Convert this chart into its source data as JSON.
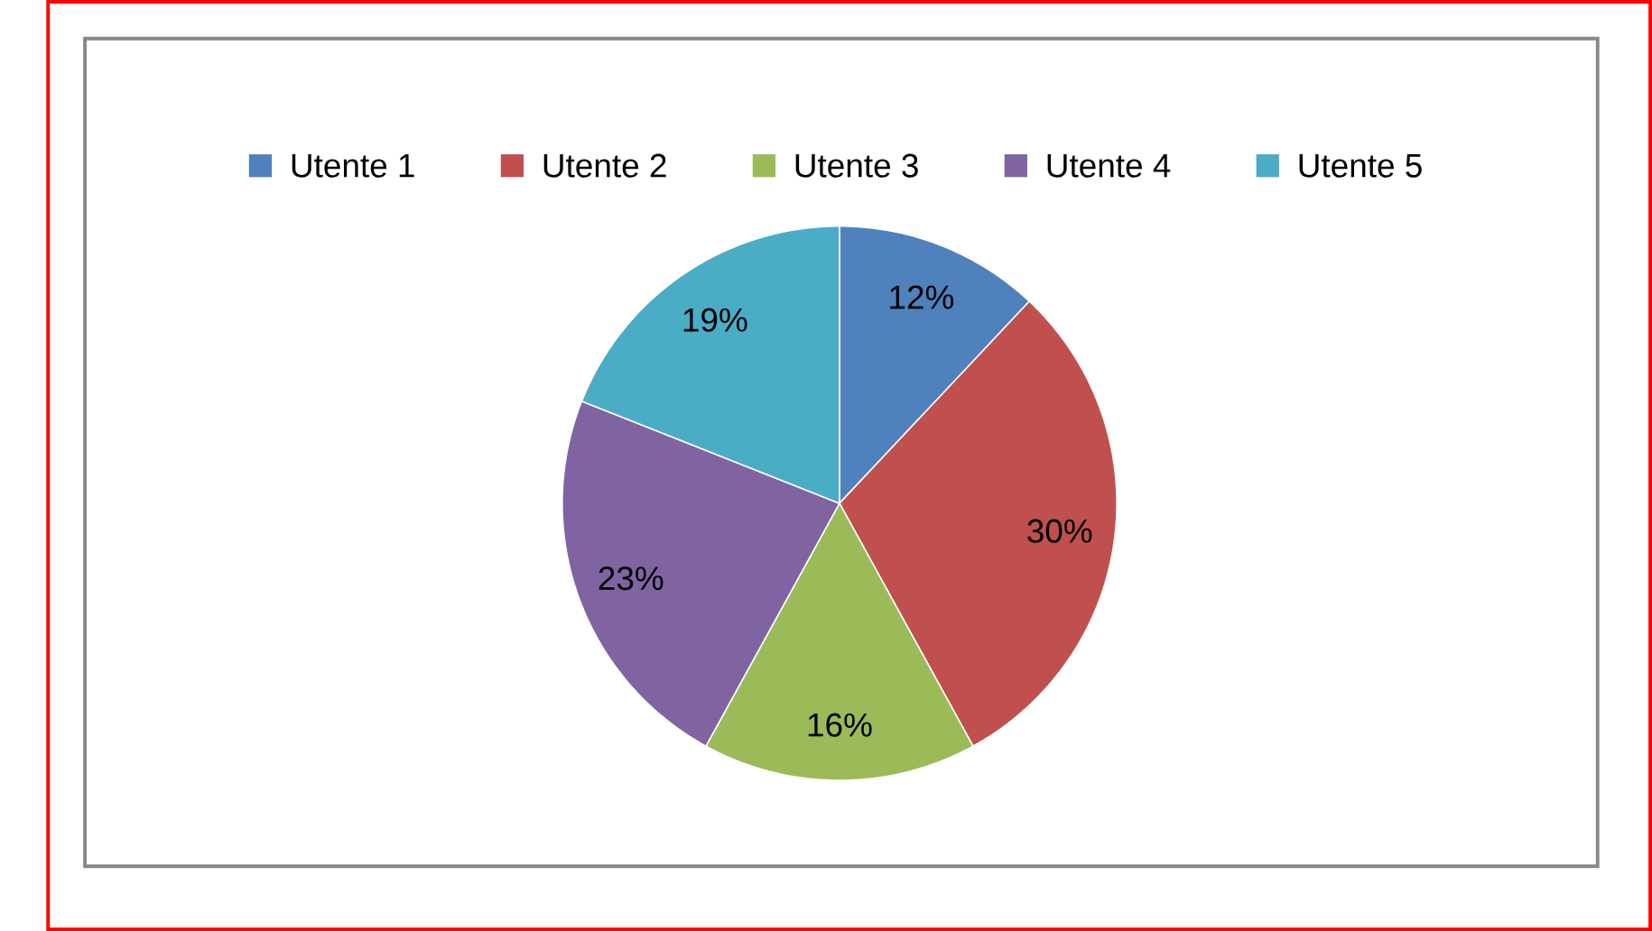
{
  "chart_data": {
    "type": "pie",
    "categories": [
      "Utente 1",
      "Utente 2",
      "Utente 3",
      "Utente 4",
      "Utente 5"
    ],
    "values": [
      12,
      30,
      16,
      23,
      19
    ],
    "colors": [
      "#4f81bd",
      "#c0504d",
      "#9bbb59",
      "#8064a2",
      "#4bacc6"
    ],
    "value_labels": [
      "12%",
      "30%",
      "16%",
      "23%",
      "19%"
    ],
    "legend": "top"
  }
}
